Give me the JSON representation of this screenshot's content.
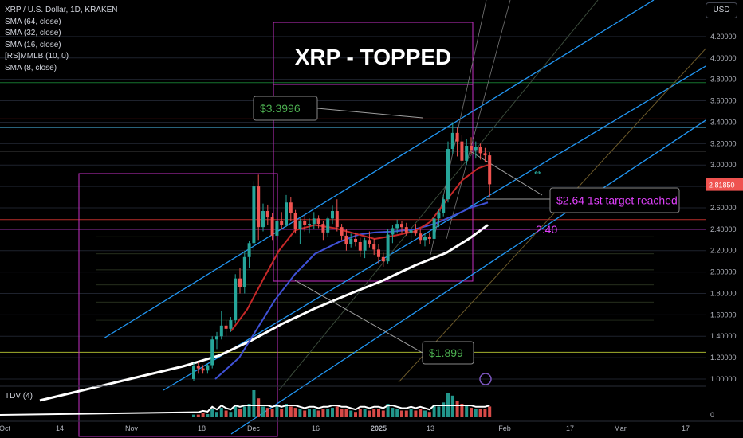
{
  "header": {
    "symbol_line": "XRP / U.S. Dollar, 1D, KRAKEN",
    "indicators": [
      "SMA (64, close)",
      "SMA (32, close)",
      "SMA (16, close)",
      "[RS]MMLB (10, 0)",
      "SMA (8, close)"
    ],
    "currency_button": "USD"
  },
  "sub_pane": {
    "label": "TDV (4)",
    "zero_label": "0"
  },
  "colors": {
    "background": "#000000",
    "up": "#26a69a",
    "down": "#ef5350",
    "channel": "#2196f3",
    "box": "#c42fc4",
    "sma_white": "#ffffff",
    "sma_blue": "#3f51d6",
    "sma_red": "#c62828",
    "sma_green": "#1b8f3a",
    "annot_green": "#4caf50",
    "annot_magenta": "#e040fb"
  },
  "chart_data": {
    "type": "candlestick",
    "title": "XRP - TOPPED",
    "y_axis": {
      "ticks": [
        1.0,
        1.2,
        1.4,
        1.6,
        1.8,
        2.0,
        2.2,
        2.4,
        2.6,
        2.8,
        3.0,
        3.2,
        3.4,
        3.6,
        3.8,
        4.0,
        4.2
      ],
      "tick_labels": [
        "1.00000",
        "1.20000",
        "1.40000",
        "1.60000",
        "1.80000",
        "2.00000",
        "2.20000",
        "2.40000",
        "2.60000",
        "2.80000",
        "3.00000",
        "3.20000",
        "3.40000",
        "3.60000",
        "3.80000",
        "4.00000",
        "4.20000"
      ],
      "range": [
        0.93,
        4.32
      ]
    },
    "x_axis": {
      "labels": [
        "Oct",
        "14",
        "Nov",
        "18",
        "Dec",
        "16",
        "2025",
        "13",
        "Feb",
        "17",
        "Mar",
        "17"
      ]
    },
    "last_price_label": "2.81850",
    "candles_ohlc": [
      [
        1.0,
        1.15,
        0.98,
        1.12
      ],
      [
        1.12,
        1.16,
        1.05,
        1.1
      ],
      [
        1.1,
        1.13,
        1.05,
        1.08
      ],
      [
        1.08,
        1.14,
        1.05,
        1.13
      ],
      [
        1.13,
        1.4,
        1.1,
        1.37
      ],
      [
        1.37,
        1.44,
        1.28,
        1.4
      ],
      [
        1.4,
        1.64,
        1.37,
        1.5
      ],
      [
        1.5,
        1.55,
        1.4,
        1.47
      ],
      [
        1.47,
        1.58,
        1.44,
        1.55
      ],
      [
        1.55,
        1.98,
        1.52,
        1.94
      ],
      [
        1.94,
        2.04,
        1.8,
        1.86
      ],
      [
        1.86,
        2.2,
        1.8,
        2.14
      ],
      [
        2.14,
        2.29,
        2.04,
        2.27
      ],
      [
        2.27,
        2.85,
        2.2,
        2.8
      ],
      [
        2.8,
        2.91,
        2.3,
        2.42
      ],
      [
        2.42,
        2.64,
        2.38,
        2.57
      ],
      [
        2.57,
        2.63,
        2.44,
        2.51
      ],
      [
        2.51,
        2.55,
        2.3,
        2.34
      ],
      [
        2.34,
        2.6,
        2.3,
        2.48
      ],
      [
        2.48,
        2.56,
        2.4,
        2.44
      ],
      [
        2.44,
        2.72,
        2.42,
        2.65
      ],
      [
        2.65,
        2.7,
        2.48,
        2.55
      ],
      [
        2.55,
        2.58,
        2.36,
        2.4
      ],
      [
        2.4,
        2.5,
        2.26,
        2.48
      ],
      [
        2.48,
        2.53,
        2.38,
        2.44
      ],
      [
        2.44,
        2.5,
        2.36,
        2.45
      ],
      [
        2.45,
        2.56,
        2.4,
        2.5
      ],
      [
        2.5,
        2.53,
        2.41,
        2.45
      ],
      [
        2.45,
        2.48,
        2.3,
        2.37
      ],
      [
        2.37,
        2.52,
        2.33,
        2.5
      ],
      [
        2.5,
        2.62,
        2.45,
        2.57
      ],
      [
        2.57,
        2.68,
        2.38,
        2.42
      ],
      [
        2.42,
        2.45,
        2.3,
        2.34
      ],
      [
        2.34,
        2.4,
        2.2,
        2.26
      ],
      [
        2.26,
        2.36,
        2.23,
        2.31
      ],
      [
        2.31,
        2.37,
        2.24,
        2.28
      ],
      [
        2.28,
        2.32,
        2.14,
        2.2
      ],
      [
        2.2,
        2.32,
        2.13,
        2.3
      ],
      [
        2.3,
        2.38,
        2.23,
        2.26
      ],
      [
        2.26,
        2.31,
        2.16,
        2.21
      ],
      [
        2.21,
        2.26,
        2.08,
        2.14
      ],
      [
        2.14,
        2.18,
        2.05,
        2.1
      ],
      [
        2.1,
        2.4,
        2.08,
        2.35
      ],
      [
        2.35,
        2.44,
        2.27,
        2.41
      ],
      [
        2.41,
        2.49,
        2.36,
        2.45
      ],
      [
        2.45,
        2.48,
        2.37,
        2.42
      ],
      [
        2.42,
        2.46,
        2.34,
        2.37
      ],
      [
        2.37,
        2.42,
        2.3,
        2.39
      ],
      [
        2.39,
        2.45,
        2.34,
        2.36
      ],
      [
        2.36,
        2.4,
        2.26,
        2.3
      ],
      [
        2.3,
        2.36,
        2.24,
        2.33
      ],
      [
        2.33,
        2.37,
        2.26,
        2.31
      ],
      [
        2.31,
        2.54,
        2.3,
        2.5
      ],
      [
        2.5,
        2.58,
        2.42,
        2.55
      ],
      [
        2.55,
        2.72,
        2.52,
        2.68
      ],
      [
        2.68,
        3.22,
        2.65,
        3.15
      ],
      [
        3.15,
        3.4,
        3.1,
        3.3
      ],
      [
        3.3,
        3.35,
        3.08,
        3.22
      ],
      [
        3.22,
        3.28,
        2.98,
        3.04
      ],
      [
        3.04,
        3.24,
        3.0,
        3.18
      ],
      [
        3.18,
        3.26,
        3.1,
        3.14
      ],
      [
        3.14,
        3.22,
        3.06,
        3.17
      ],
      [
        3.17,
        3.2,
        3.05,
        3.11
      ],
      [
        3.11,
        3.16,
        3.03,
        3.09
      ],
      [
        3.09,
        3.12,
        2.7,
        2.82
      ]
    ],
    "moving_averages": [
      {
        "name": "SMA (64, close)",
        "color": "#ffffff",
        "x": [
          50,
          95,
          140,
          185,
          230,
          275,
          315,
          355,
          395,
          440,
          480,
          520,
          560,
          590,
          612
        ],
        "y": [
          0.8,
          0.88,
          0.96,
          1.04,
          1.12,
          1.22,
          1.36,
          1.52,
          1.66,
          1.8,
          1.92,
          2.06,
          2.18,
          2.32,
          2.44
        ]
      },
      {
        "name": "SMA (32, close)",
        "color": "#3f51d6",
        "x": [
          270,
          300,
          320,
          345,
          370,
          395,
          425,
          450,
          470,
          495,
          520,
          545,
          570,
          590,
          612
        ],
        "y": [
          1.0,
          1.2,
          1.44,
          1.74,
          1.98,
          2.17,
          2.28,
          2.35,
          2.37,
          2.38,
          2.4,
          2.45,
          2.53,
          2.6,
          2.65
        ]
      },
      {
        "name": "SMA (16, close)",
        "color": "#c62828",
        "x": [
          290,
          310,
          330,
          350,
          370,
          395,
          420,
          445,
          470,
          495,
          520,
          540,
          560,
          580,
          600,
          612
        ],
        "y": [
          1.45,
          1.65,
          1.93,
          2.2,
          2.39,
          2.44,
          2.41,
          2.36,
          2.31,
          2.34,
          2.38,
          2.47,
          2.67,
          2.86,
          2.97,
          3.0
        ]
      }
    ],
    "price_levels": [
      {
        "value": 3.77,
        "color": "#1b8f3a"
      },
      {
        "value": 3.43,
        "color": "#c62828"
      },
      {
        "value": 3.35,
        "color": "#4fc3f7"
      },
      {
        "value": 3.13,
        "color": "#9e9e9e"
      },
      {
        "value": 2.49,
        "color": "#e53935"
      },
      {
        "value": 2.4,
        "color": "#e040fb"
      },
      {
        "value": 1.25,
        "color": "#cddc39"
      }
    ],
    "annotations": [
      {
        "text": "$3.3996",
        "value": 3.3996,
        "color": "#4caf50"
      },
      {
        "text": "$2.64 1st target reached",
        "value": 2.64,
        "color": "#e040fb"
      },
      {
        "text": "2.40",
        "value": 2.4,
        "color": "#e040fb"
      },
      {
        "text": "$1.899",
        "value": 1.899,
        "color": "#4caf50"
      }
    ],
    "tdv": [
      0.1,
      0.1,
      0.15,
      0.12,
      0.3,
      0.2,
      0.35,
      0.25,
      0.2,
      0.45,
      0.3,
      0.4,
      0.5,
      1.0,
      0.7,
      0.4,
      0.35,
      0.3,
      0.45,
      0.3,
      0.5,
      0.4,
      0.35,
      0.3,
      0.25,
      0.3,
      0.3,
      0.25,
      0.3,
      0.3,
      0.35,
      0.4,
      0.3,
      0.3,
      0.25,
      0.2,
      0.3,
      0.3,
      0.25,
      0.3,
      0.3,
      0.25,
      0.5,
      0.35,
      0.3,
      0.25,
      0.25,
      0.3,
      0.25,
      0.3,
      0.25,
      0.2,
      0.45,
      0.4,
      0.55,
      0.9,
      0.8,
      0.6,
      0.5,
      0.45,
      0.35,
      0.3,
      0.3,
      0.3,
      0.4
    ]
  }
}
